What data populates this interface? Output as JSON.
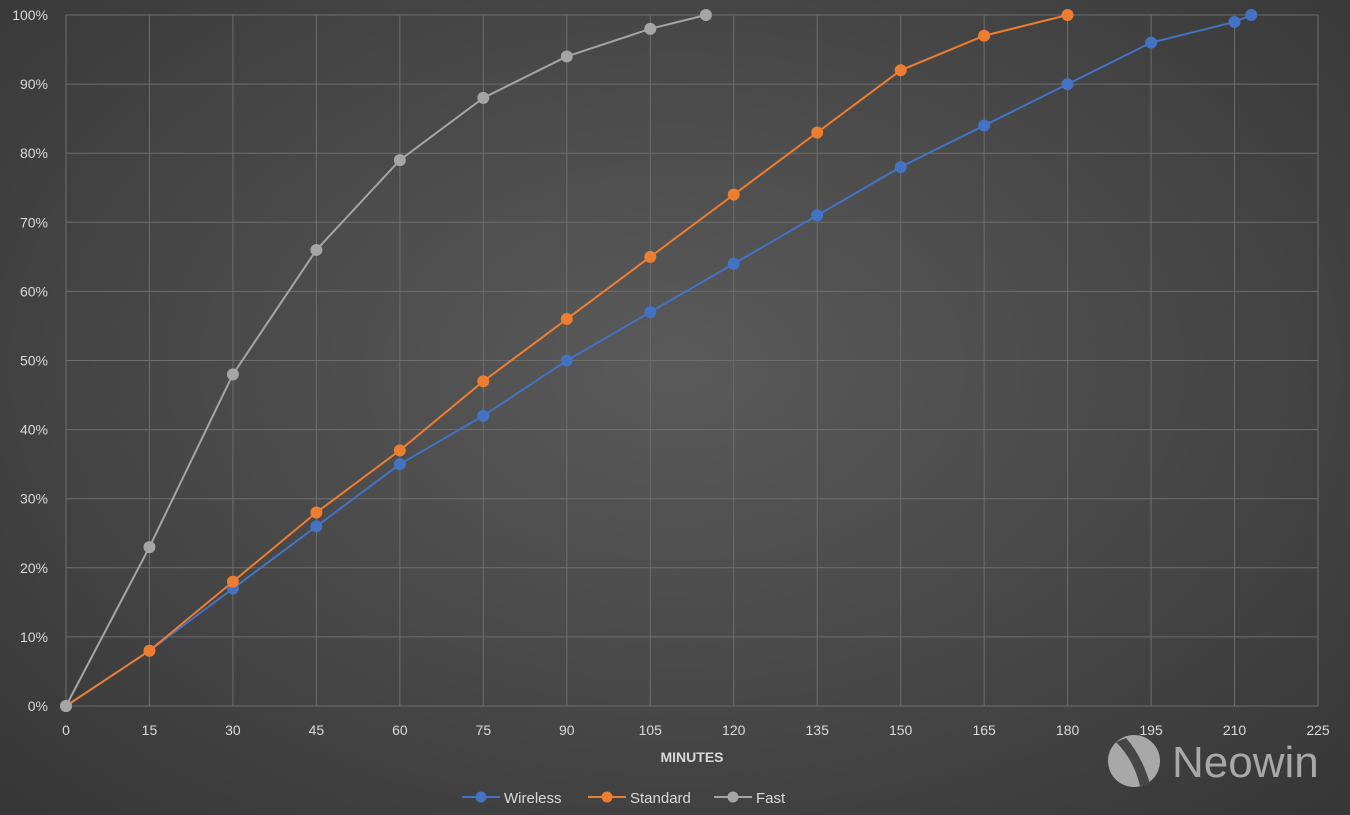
{
  "chart_data": {
    "type": "line",
    "title": "",
    "xlabel": "MINUTES",
    "ylabel": "",
    "xlim": [
      0,
      225
    ],
    "ylim": [
      0,
      100
    ],
    "xticks": [
      "0",
      "15",
      "30",
      "45",
      "60",
      "75",
      "90",
      "105",
      "120",
      "135",
      "150",
      "165",
      "180",
      "195",
      "210",
      "225"
    ],
    "yticks": [
      "0%",
      "10%",
      "20%",
      "30%",
      "40%",
      "50%",
      "60%",
      "70%",
      "80%",
      "90%",
      "100%"
    ],
    "grid": true,
    "legend_position": "bottom",
    "series": [
      {
        "name": "Wireless",
        "color": "#4472c4",
        "x": [
          0,
          15,
          30,
          45,
          60,
          75,
          90,
          105,
          120,
          135,
          150,
          165,
          180,
          195,
          210,
          213
        ],
        "y": [
          0,
          8,
          17,
          26,
          35,
          42,
          50,
          57,
          64,
          71,
          78,
          84,
          90,
          96,
          99,
          100
        ]
      },
      {
        "name": "Standard",
        "color": "#ed7d31",
        "x": [
          0,
          15,
          30,
          45,
          60,
          75,
          90,
          105,
          120,
          135,
          150,
          165,
          180
        ],
        "y": [
          0,
          8,
          18,
          28,
          37,
          47,
          56,
          65,
          74,
          83,
          92,
          97,
          100
        ]
      },
      {
        "name": "Fast",
        "color": "#a5a5a5",
        "x": [
          0,
          15,
          30,
          45,
          60,
          75,
          90,
          105,
          115
        ],
        "y": [
          0,
          23,
          48,
          66,
          79,
          88,
          94,
          98,
          100
        ]
      }
    ]
  },
  "watermark": "Neowin"
}
